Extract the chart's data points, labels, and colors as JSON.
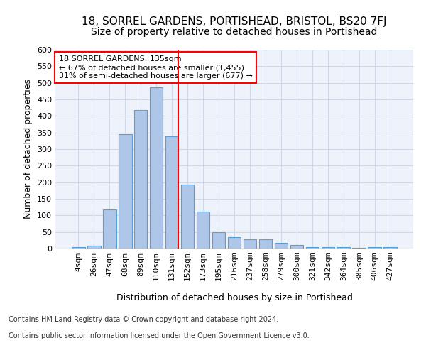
{
  "title": "18, SORREL GARDENS, PORTISHEAD, BRISTOL, BS20 7FJ",
  "subtitle": "Size of property relative to detached houses in Portishead",
  "xlabel": "Distribution of detached houses by size in Portishead",
  "ylabel": "Number of detached properties",
  "categories": [
    "4sqm",
    "26sqm",
    "47sqm",
    "68sqm",
    "89sqm",
    "110sqm",
    "131sqm",
    "152sqm",
    "173sqm",
    "195sqm",
    "216sqm",
    "237sqm",
    "258sqm",
    "279sqm",
    "300sqm",
    "321sqm",
    "342sqm",
    "364sqm",
    "385sqm",
    "406sqm",
    "427sqm"
  ],
  "values": [
    5,
    8,
    118,
    345,
    418,
    487,
    338,
    193,
    111,
    50,
    35,
    27,
    27,
    18,
    10,
    4,
    4,
    5,
    3,
    4,
    5
  ],
  "bar_color": "#aec6e8",
  "bar_edge_color": "#5a9fd4",
  "grid_color": "#d0d8e8",
  "background_color": "#eef2fa",
  "vline_x_index": 6,
  "vline_color": "red",
  "annotation_text": "18 SORREL GARDENS: 135sqm\n← 67% of detached houses are smaller (1,455)\n31% of semi-detached houses are larger (677) →",
  "annotation_box_color": "white",
  "annotation_box_edge_color": "red",
  "footer_line1": "Contains HM Land Registry data © Crown copyright and database right 2024.",
  "footer_line2": "Contains public sector information licensed under the Open Government Licence v3.0.",
  "ylim": [
    0,
    600
  ],
  "yticks": [
    0,
    50,
    100,
    150,
    200,
    250,
    300,
    350,
    400,
    450,
    500,
    550,
    600
  ],
  "title_fontsize": 11,
  "subtitle_fontsize": 10,
  "xlabel_fontsize": 9,
  "ylabel_fontsize": 9,
  "tick_fontsize": 8,
  "annotation_fontsize": 8,
  "footer_fontsize": 7
}
